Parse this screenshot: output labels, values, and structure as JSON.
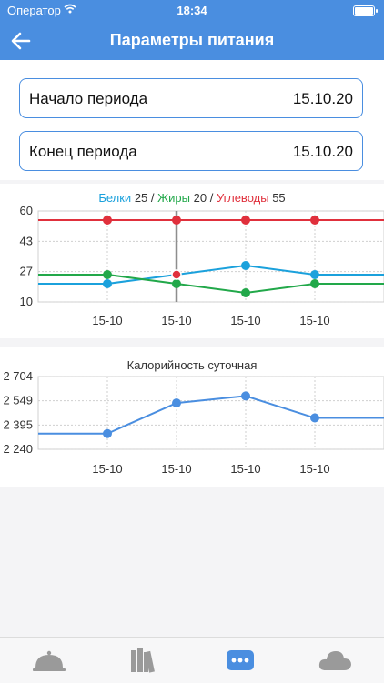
{
  "status_bar": {
    "carrier": "Оператор",
    "time": "18:34"
  },
  "nav": {
    "title": "Параметры питания"
  },
  "period": {
    "start_label": "Начало периода",
    "start_value": "15.10.20",
    "end_label": "Конец периода",
    "end_value": "15.10.20"
  },
  "colors": {
    "accent": "#4a8ee0",
    "protein": "#1ba1dc",
    "fat": "#22a84a",
    "carbs": "#e0303c",
    "calories": "#4a8ee0"
  },
  "legend": {
    "protein_label": "Белки",
    "protein_value": "25",
    "fat_label": "Жиры",
    "fat_value": "20",
    "carbs_label": "Углеводы",
    "carbs_value": "55",
    "separator": "/"
  },
  "tabs": [
    {
      "icon": "food-dome-icon",
      "selected": false
    },
    {
      "icon": "books-icon",
      "selected": false
    },
    {
      "icon": "more-dots-icon",
      "selected": true
    },
    {
      "icon": "cloud-icon",
      "selected": false
    }
  ],
  "chart_data": [
    {
      "type": "line",
      "title": "",
      "categories": [
        "15-10",
        "15-10",
        "15-10",
        "15-10"
      ],
      "yticks": [
        "60",
        "43",
        "27",
        "10"
      ],
      "ylim": [
        10,
        60
      ],
      "grid": true,
      "highlight_index": 1,
      "series": [
        {
          "name": "Белки",
          "color": "#1ba1dc",
          "values": [
            20,
            25,
            30,
            25
          ]
        },
        {
          "name": "Жиры",
          "color": "#22a84a",
          "values": [
            25,
            20,
            15,
            20
          ]
        },
        {
          "name": "Углеводы",
          "color": "#e0303c",
          "values": [
            55,
            55,
            55,
            55
          ]
        }
      ]
    },
    {
      "type": "line",
      "title": "Калорийность суточная",
      "categories": [
        "15-10",
        "15-10",
        "15-10",
        "15-10"
      ],
      "yticks": [
        "2 704",
        "2 549",
        "2 395",
        "2 240"
      ],
      "ylim": [
        2240,
        2704
      ],
      "grid": true,
      "series": [
        {
          "color": "#4a8ee0",
          "values": [
            2340,
            2535,
            2580,
            2440
          ]
        }
      ]
    }
  ]
}
